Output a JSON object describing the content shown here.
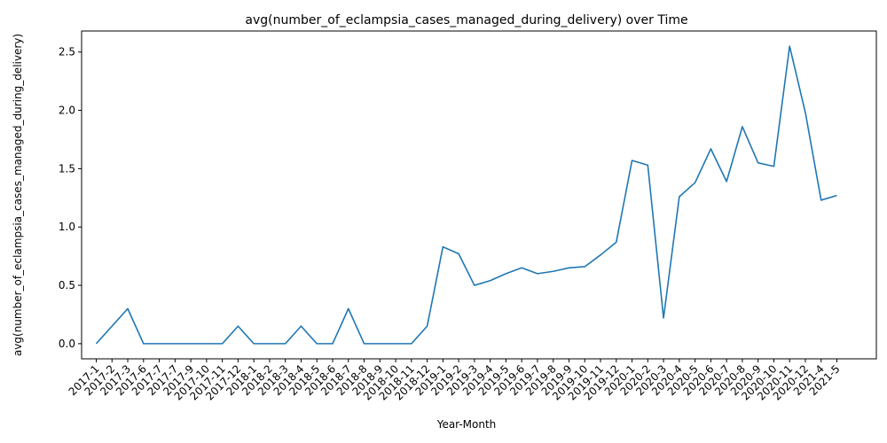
{
  "chart_data": {
    "type": "line",
    "title": "avg(number_of_eclampsia_cases_managed_during_delivery) over Time",
    "xlabel": "Year-Month",
    "ylabel": "avg(number_of_eclampsia_cases_managed_during_delivery)",
    "ylim": [
      -0.13,
      2.68
    ],
    "yticks": [
      "0.0",
      "0.5",
      "1.0",
      "1.5",
      "2.0",
      "2.5"
    ],
    "grid": false,
    "line_color": "#1f77b4",
    "categories": [
      "2017-1",
      "2017-2",
      "2017-3",
      "2017-6",
      "2017-7",
      "2017-7",
      "2017-9",
      "2017-10",
      "2017-11",
      "2017-12",
      "2018-1",
      "2018-2",
      "2018-3",
      "2018-4",
      "2018-5",
      "2018-6",
      "2018-7",
      "2018-8",
      "2018-9",
      "2018-10",
      "2018-11",
      "2018-12",
      "2019-1",
      "2019-2",
      "2019-3",
      "2019-4",
      "2019-5",
      "2019-6",
      "2019-7",
      "2019-8",
      "2019-9",
      "2019-10",
      "2019-11",
      "2019-12",
      "2020-1",
      "2020-2",
      "2020-3",
      "2020-4",
      "2020-5",
      "2020-6",
      "2020-7",
      "2020-8",
      "2020-9",
      "2020-10",
      "2020-11",
      "2020-12",
      "2021-4",
      "2021-5"
    ],
    "values": [
      0.0,
      0.15,
      0.3,
      0.0,
      0.0,
      0.0,
      0.0,
      0.0,
      0.0,
      0.15,
      0.0,
      0.0,
      0.0,
      0.15,
      0.0,
      0.0,
      0.3,
      0.0,
      0.0,
      0.0,
      0.0,
      0.15,
      0.83,
      0.77,
      0.5,
      0.54,
      0.6,
      0.65,
      0.6,
      0.62,
      0.65,
      0.66,
      0.76,
      0.87,
      1.57,
      1.53,
      0.22,
      1.26,
      1.38,
      1.67,
      1.39,
      1.86,
      1.55,
      1.52,
      2.55,
      1.98,
      1.23,
      1.27
    ]
  }
}
